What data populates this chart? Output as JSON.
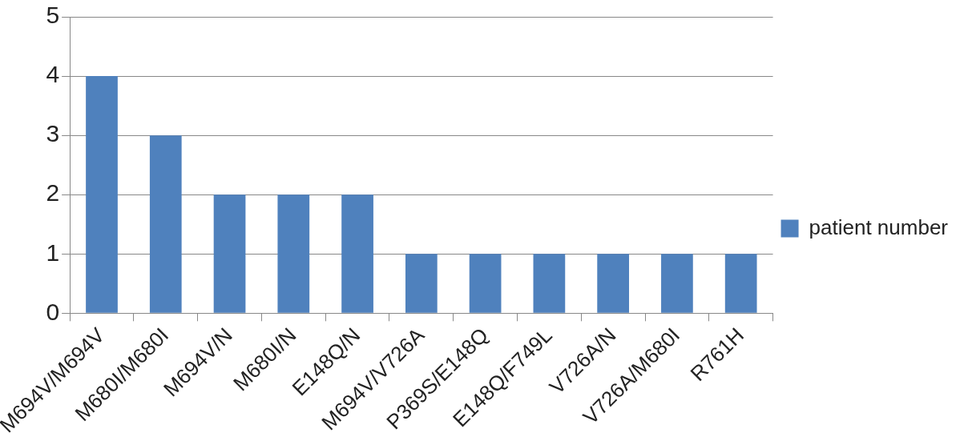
{
  "chart_data": {
    "type": "bar",
    "categories": [
      "M694V/M694V",
      "M680I/M680I",
      "M694V/N",
      "M680I/N",
      "E148Q/N",
      "M694V/V726A",
      "P369S/E148Q",
      "E148Q/F749L",
      "V726A/N",
      "V726A/M680I",
      "R761H"
    ],
    "series": [
      {
        "name": "patient number",
        "color": "#4f81bd",
        "values": [
          4,
          3,
          2,
          2,
          2,
          1,
          1,
          1,
          1,
          1,
          1
        ]
      }
    ],
    "ylim": [
      0,
      5
    ],
    "yticks": [
      0,
      1,
      2,
      3,
      4,
      5
    ],
    "grid": "y",
    "legend": "right"
  }
}
